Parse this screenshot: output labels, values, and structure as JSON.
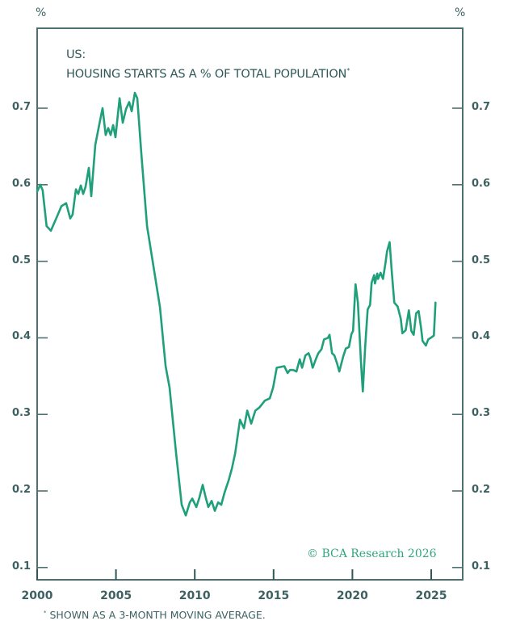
{
  "chart_data": {
    "type": "line",
    "title_line1": "US:",
    "title_line2": "HOUSING STARTS AS A % OF TOTAL POPULATION",
    "title_marker": "*",
    "xlabel": "",
    "ylabel_left": "%",
    "ylabel_right": "%",
    "xlim": [
      2000,
      2027
    ],
    "ylim": [
      0.09,
      0.8
    ],
    "x_ticks": [
      2000,
      2005,
      2010,
      2015,
      2020,
      2025
    ],
    "x_tick_labels": [
      "2000",
      "2005",
      "2010",
      "2015",
      "2020",
      "2025"
    ],
    "y_ticks": [
      0.1,
      0.2,
      0.3,
      0.4,
      0.5,
      0.6,
      0.7
    ],
    "y_tick_labels": [
      "0.1",
      "0.2",
      "0.3",
      "0.4",
      "0.5",
      "0.6",
      "0.7"
    ],
    "grid": false,
    "line_color": "#1fa07a",
    "series": [
      {
        "name": "Housing starts as % of total population (3-month moving average)",
        "points": [
          [
            2000.0,
            0.591
          ],
          [
            2000.2,
            0.6
          ],
          [
            2000.35,
            0.593
          ],
          [
            2000.6,
            0.546
          ],
          [
            2000.87,
            0.54
          ],
          [
            2001.23,
            0.557
          ],
          [
            2001.54,
            0.572
          ],
          [
            2001.84,
            0.576
          ],
          [
            2002.1,
            0.556
          ],
          [
            2002.25,
            0.561
          ],
          [
            2002.46,
            0.594
          ],
          [
            2002.61,
            0.588
          ],
          [
            2002.77,
            0.599
          ],
          [
            2002.92,
            0.588
          ],
          [
            2003.07,
            0.597
          ],
          [
            2003.28,
            0.622
          ],
          [
            2003.43,
            0.585
          ],
          [
            2003.69,
            0.652
          ],
          [
            2004.0,
            0.685
          ],
          [
            2004.15,
            0.7
          ],
          [
            2004.35,
            0.665
          ],
          [
            2004.51,
            0.674
          ],
          [
            2004.66,
            0.665
          ],
          [
            2004.82,
            0.678
          ],
          [
            2004.97,
            0.662
          ],
          [
            2005.23,
            0.713
          ],
          [
            2005.43,
            0.681
          ],
          [
            2005.64,
            0.699
          ],
          [
            2005.84,
            0.708
          ],
          [
            2006.0,
            0.696
          ],
          [
            2006.2,
            0.72
          ],
          [
            2006.35,
            0.713
          ],
          [
            2006.61,
            0.641
          ],
          [
            2006.97,
            0.546
          ],
          [
            2007.38,
            0.493
          ],
          [
            2007.79,
            0.44
          ],
          [
            2008.15,
            0.363
          ],
          [
            2008.4,
            0.335
          ],
          [
            2008.81,
            0.25
          ],
          [
            2009.17,
            0.182
          ],
          [
            2009.43,
            0.168
          ],
          [
            2009.68,
            0.185
          ],
          [
            2009.84,
            0.19
          ],
          [
            2010.1,
            0.179
          ],
          [
            2010.3,
            0.192
          ],
          [
            2010.5,
            0.208
          ],
          [
            2010.71,
            0.19
          ],
          [
            2010.86,
            0.179
          ],
          [
            2011.07,
            0.187
          ],
          [
            2011.27,
            0.174
          ],
          [
            2011.48,
            0.185
          ],
          [
            2011.68,
            0.182
          ],
          [
            2011.89,
            0.198
          ],
          [
            2012.15,
            0.214
          ],
          [
            2012.35,
            0.229
          ],
          [
            2012.56,
            0.249
          ],
          [
            2012.87,
            0.293
          ],
          [
            2013.12,
            0.282
          ],
          [
            2013.33,
            0.305
          ],
          [
            2013.58,
            0.288
          ],
          [
            2013.84,
            0.305
          ],
          [
            2014.1,
            0.309
          ],
          [
            2014.45,
            0.318
          ],
          [
            2014.76,
            0.321
          ],
          [
            2014.97,
            0.335
          ],
          [
            2015.2,
            0.361
          ],
          [
            2015.68,
            0.363
          ],
          [
            2015.89,
            0.354
          ],
          [
            2016.04,
            0.358
          ],
          [
            2016.25,
            0.358
          ],
          [
            2016.45,
            0.356
          ],
          [
            2016.66,
            0.372
          ],
          [
            2016.81,
            0.361
          ],
          [
            2017.02,
            0.377
          ],
          [
            2017.22,
            0.38
          ],
          [
            2017.33,
            0.374
          ],
          [
            2017.48,
            0.361
          ],
          [
            2017.68,
            0.372
          ],
          [
            2017.84,
            0.38
          ],
          [
            2018.04,
            0.385
          ],
          [
            2018.2,
            0.398
          ],
          [
            2018.45,
            0.4
          ],
          [
            2018.55,
            0.404
          ],
          [
            2018.71,
            0.38
          ],
          [
            2018.86,
            0.377
          ],
          [
            2019.02,
            0.367
          ],
          [
            2019.17,
            0.356
          ],
          [
            2019.42,
            0.376
          ],
          [
            2019.58,
            0.386
          ],
          [
            2019.78,
            0.388
          ],
          [
            2019.94,
            0.405
          ],
          [
            2020.04,
            0.409
          ],
          [
            2020.2,
            0.47
          ],
          [
            2020.35,
            0.446
          ],
          [
            2020.55,
            0.367
          ],
          [
            2020.66,
            0.33
          ],
          [
            2020.81,
            0.388
          ],
          [
            2020.97,
            0.437
          ],
          [
            2021.12,
            0.443
          ],
          [
            2021.22,
            0.472
          ],
          [
            2021.38,
            0.482
          ],
          [
            2021.43,
            0.471
          ],
          [
            2021.58,
            0.484
          ],
          [
            2021.63,
            0.477
          ],
          [
            2021.79,
            0.485
          ],
          [
            2021.94,
            0.477
          ],
          [
            2022.1,
            0.498
          ],
          [
            2022.2,
            0.513
          ],
          [
            2022.36,
            0.525
          ],
          [
            2022.51,
            0.483
          ],
          [
            2022.66,
            0.446
          ],
          [
            2022.87,
            0.441
          ],
          [
            2023.07,
            0.425
          ],
          [
            2023.17,
            0.406
          ],
          [
            2023.38,
            0.41
          ],
          [
            2023.58,
            0.436
          ],
          [
            2023.74,
            0.409
          ],
          [
            2023.89,
            0.404
          ],
          [
            2024.04,
            0.432
          ],
          [
            2024.2,
            0.435
          ],
          [
            2024.35,
            0.414
          ],
          [
            2024.45,
            0.396
          ],
          [
            2024.66,
            0.39
          ],
          [
            2024.81,
            0.398
          ],
          [
            2024.97,
            0.4
          ],
          [
            2025.17,
            0.403
          ],
          [
            2025.27,
            0.446
          ]
        ]
      }
    ],
    "annotations": {
      "footnote_marker": "*",
      "footnote": "SHOWN AS A 3-MONTH MOVING AVERAGE.",
      "copyright": "© BCA Research 2026"
    }
  }
}
